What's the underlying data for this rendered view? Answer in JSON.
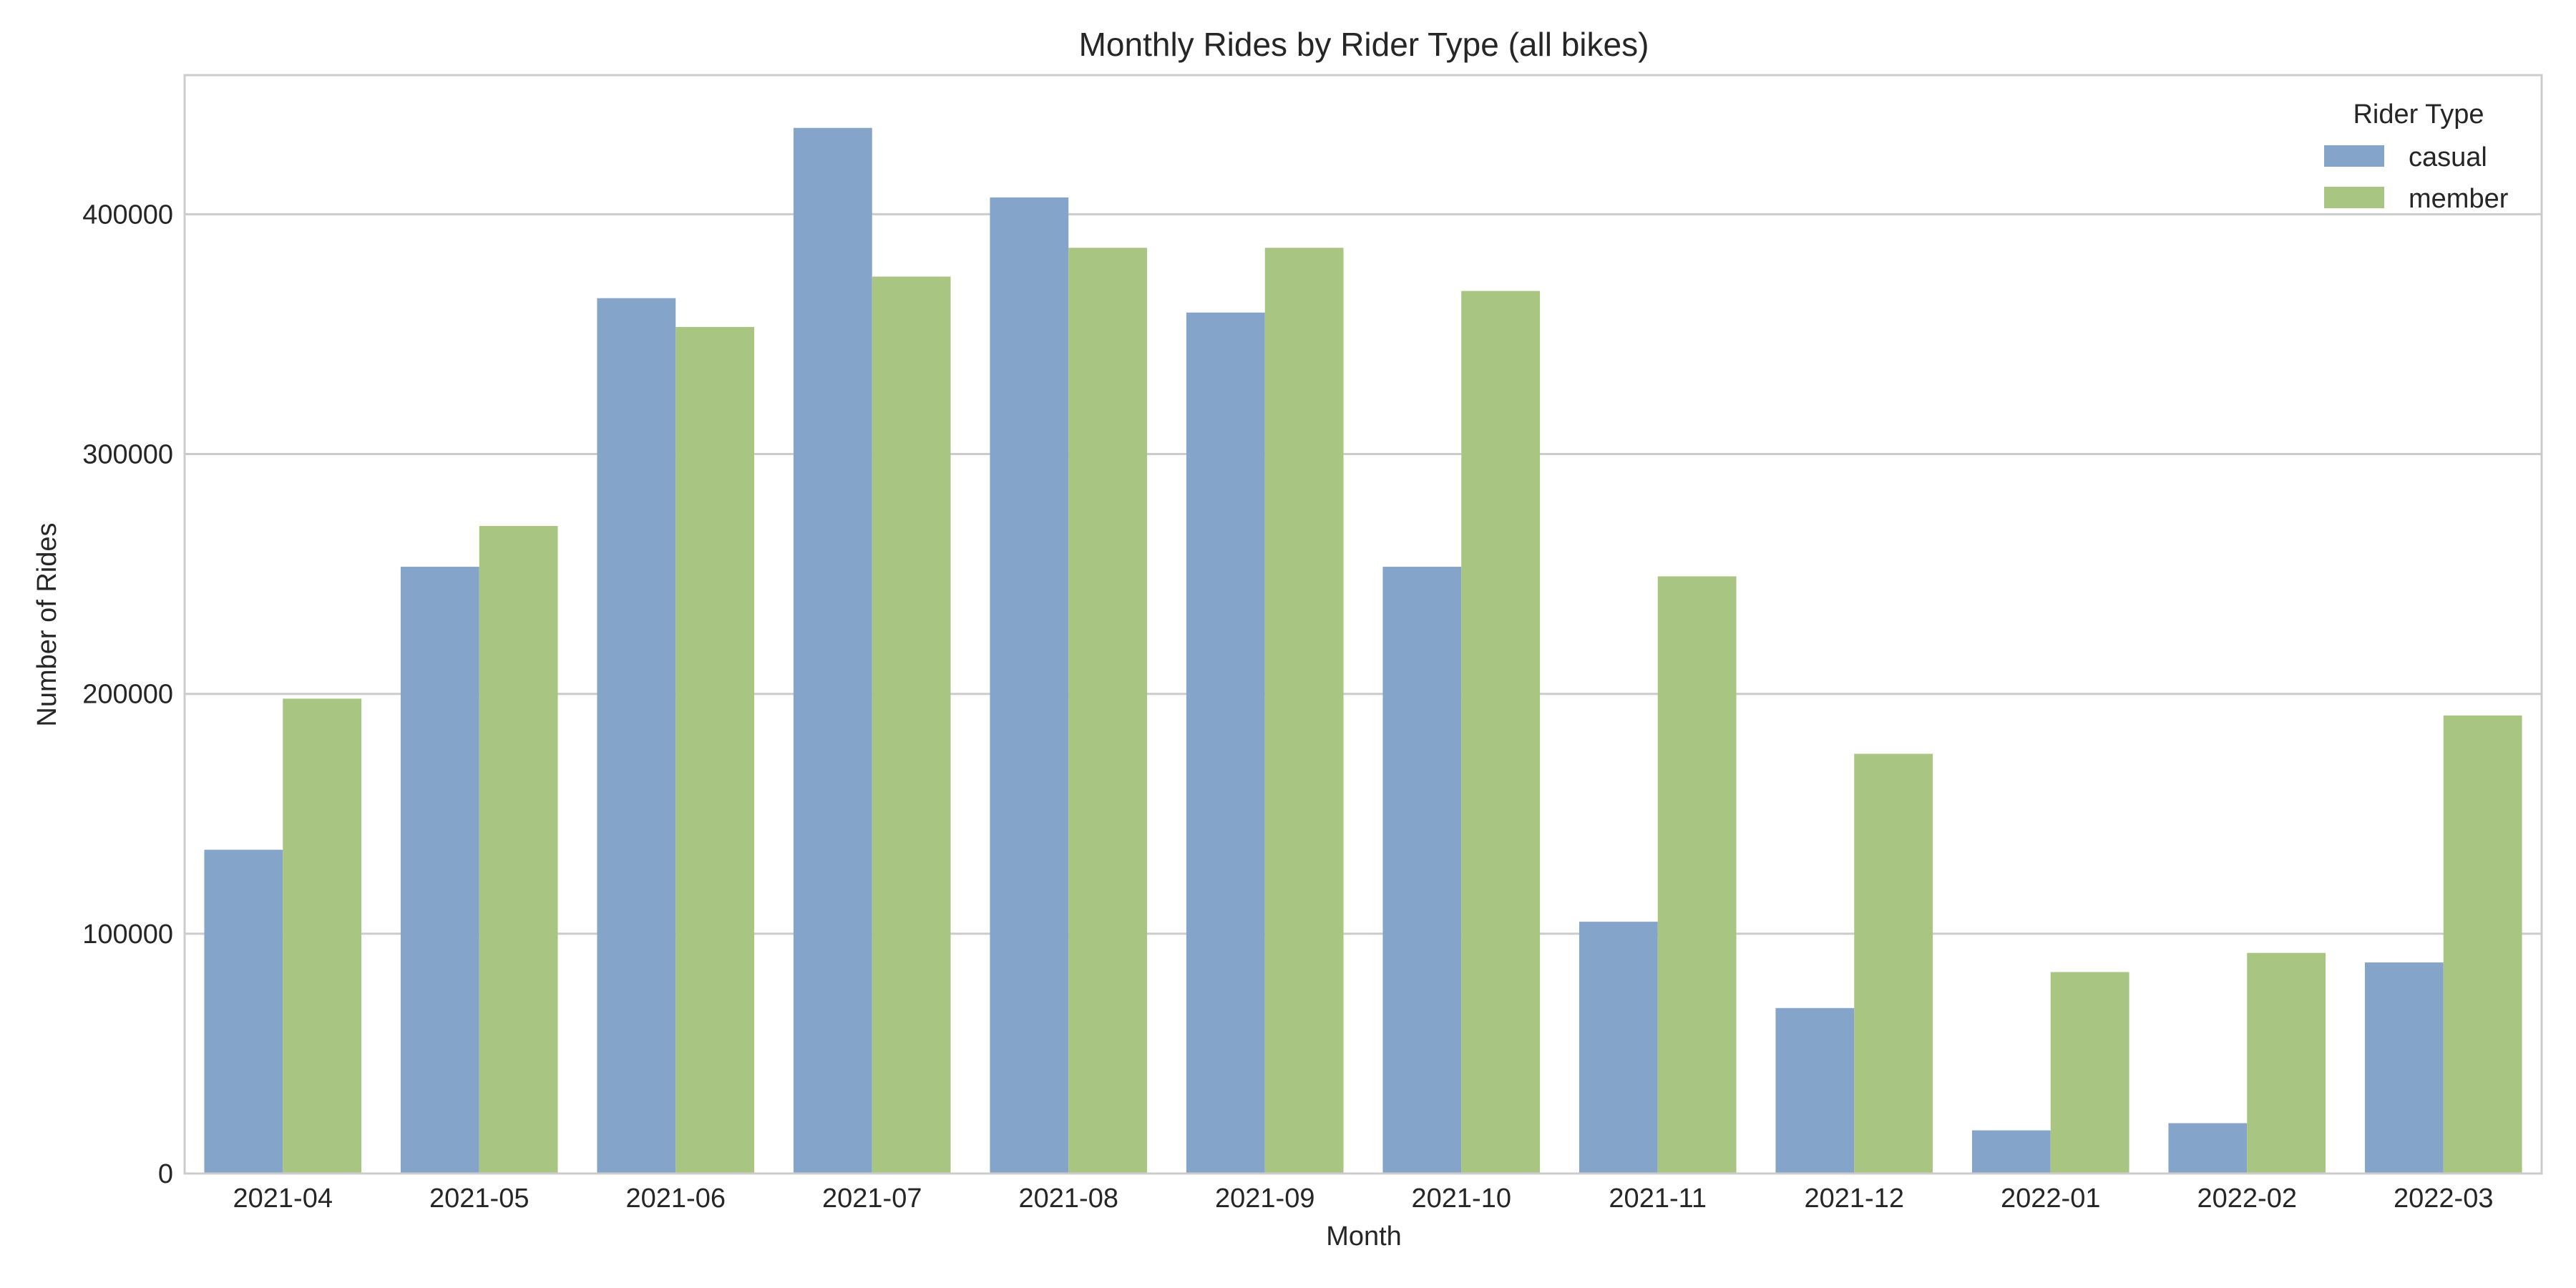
{
  "chart_data": {
    "type": "bar",
    "title": "Monthly Rides by Rider Type (all bikes)",
    "xlabel": "Month",
    "ylabel": "Number of Rides",
    "categories": [
      "2021-04",
      "2021-05",
      "2021-06",
      "2021-07",
      "2021-08",
      "2021-09",
      "2021-10",
      "2021-11",
      "2021-12",
      "2022-01",
      "2022-02",
      "2022-03"
    ],
    "series": [
      {
        "name": "casual",
        "color": "#85A4C9",
        "values": [
          135000,
          253000,
          365000,
          436000,
          407000,
          359000,
          253000,
          105000,
          69000,
          18000,
          21000,
          88000
        ]
      },
      {
        "name": "member",
        "color": "#A8C682",
        "values": [
          198000,
          270000,
          353000,
          374000,
          386000,
          386000,
          368000,
          249000,
          175000,
          84000,
          92000,
          191000
        ]
      }
    ],
    "ylim": [
      0,
      458000
    ],
    "yticks": [
      0,
      100000,
      200000,
      300000,
      400000
    ],
    "grid": true,
    "legend": {
      "title": "Rider Type",
      "placement": "top-right"
    }
  }
}
